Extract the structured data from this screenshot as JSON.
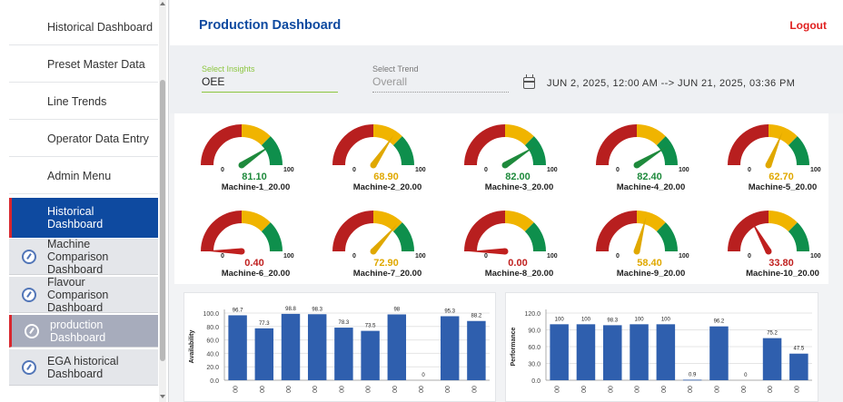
{
  "sidebar": {
    "items": [
      {
        "label": "Historical Dashboard"
      },
      {
        "label": "Preset Master Data"
      },
      {
        "label": "Line Trends"
      },
      {
        "label": "Operator Data Entry"
      },
      {
        "label": "Admin Menu"
      },
      {
        "label": "Historical Dashboard",
        "active": true
      }
    ],
    "sub_items": [
      {
        "label": "Machine Comparison Dashboard",
        "icon": "gauge-icon"
      },
      {
        "label": "Flavour Comparison Dashboard",
        "icon": "gauge-icon"
      },
      {
        "label": "production Dashboard",
        "icon": "gauge-icon",
        "current": true
      },
      {
        "label": "EGA historical Dashboard",
        "icon": "gauge-icon"
      }
    ]
  },
  "header": {
    "title": "Production Dashboard",
    "logout": "Logout"
  },
  "filters": {
    "insights_label": "Select Insights",
    "insights_value": "OEE",
    "trend_label": "Select Trend",
    "trend_placeholder": "Overall",
    "date_range": "JUN 2, 2025, 12:00 AM --> JUN 21, 2025, 03:36 PM"
  },
  "gauges": [
    {
      "name": "Machine-1_20.00",
      "value": "81.10",
      "num": 81.1,
      "min": "0",
      "max": "100",
      "color": "#1e8a3c"
    },
    {
      "name": "Machine-2_20.00",
      "value": "68.90",
      "num": 68.9,
      "min": "0",
      "max": "100",
      "color": "#e0a800"
    },
    {
      "name": "Machine-3_20.00",
      "value": "82.00",
      "num": 82.0,
      "min": "0",
      "max": "100",
      "color": "#1e8a3c"
    },
    {
      "name": "Machine-4_20.00",
      "value": "82.40",
      "num": 82.4,
      "min": "0",
      "max": "100",
      "color": "#1e8a3c"
    },
    {
      "name": "Machine-5_20.00",
      "value": "62.70",
      "num": 62.7,
      "min": "0",
      "max": "100",
      "color": "#e0a800"
    },
    {
      "name": "Machine-6_20.00",
      "value": "0.40",
      "num": 0.4,
      "min": "0",
      "max": "100",
      "color": "#c0201f"
    },
    {
      "name": "Machine-7_20.00",
      "value": "72.90",
      "num": 72.9,
      "min": "0",
      "max": "100",
      "color": "#e0a800"
    },
    {
      "name": "Machine-8_20.00",
      "value": "0.00",
      "num": 0.0,
      "min": "0",
      "max": "100",
      "color": "#c0201f"
    },
    {
      "name": "Machine-9_20.00",
      "value": "58.40",
      "num": 58.4,
      "min": "0",
      "max": "100",
      "color": "#e0a800"
    },
    {
      "name": "Machine-10_20.00",
      "value": "33.80",
      "num": 33.8,
      "min": "0",
      "max": "100",
      "color": "#c0201f"
    }
  ],
  "colors": {
    "gauge_red": "#b81f1f",
    "gauge_yellow": "#f0b400",
    "gauge_green": "#0e8f4c",
    "bar": "#2f5fae",
    "accent": "#0e4aa0"
  },
  "chart_data": [
    {
      "type": "bar",
      "ylabel": "Availability",
      "ylim": [
        0,
        100
      ],
      "yticks": [
        "0.0",
        "20.0",
        "40.0",
        "60.0",
        "80.0",
        "100.0"
      ],
      "ytick_values": [
        0,
        20,
        40,
        60,
        80,
        100
      ],
      "categories": [
        "00",
        "00",
        "00",
        "00",
        "00",
        "00",
        "00",
        "00",
        "00",
        "00"
      ],
      "values": [
        96.7,
        77.3,
        98.8,
        98.3,
        78.3,
        73.5,
        98,
        0,
        95.3,
        88.2
      ],
      "value_labels": [
        "96.7",
        "77.3",
        "98.8",
        "98.3",
        "78.3",
        "73.5",
        "98",
        "0",
        "95.3",
        "88.2"
      ]
    },
    {
      "type": "bar",
      "ylabel": "Performance",
      "ylim": [
        0,
        120
      ],
      "yticks": [
        "0.0",
        "30.0",
        "60.0",
        "90.0",
        "120.0"
      ],
      "ytick_values": [
        0,
        30,
        60,
        90,
        120
      ],
      "categories": [
        "00",
        "00",
        "00",
        "00",
        "00",
        "00",
        "00",
        "00",
        "00",
        "00"
      ],
      "values": [
        100,
        100,
        98.3,
        100,
        100,
        0.9,
        96.2,
        0,
        75.2,
        47.5
      ],
      "value_labels": [
        "100",
        "100",
        "98.3",
        "100",
        "100",
        "0.9",
        "96.2",
        "0",
        "75.2",
        "47.5"
      ]
    }
  ]
}
